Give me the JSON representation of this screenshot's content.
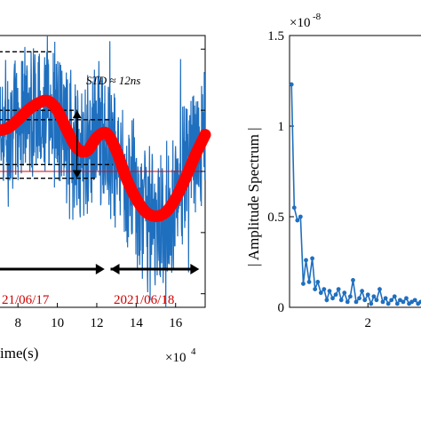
{
  "chart_data": [
    {
      "type": "line",
      "xlabel": "ime(s)",
      "x_exponent_label": "×10",
      "x_exponent_power": "4",
      "x_ticks": [
        "8",
        "10",
        "12",
        "14",
        "16"
      ],
      "x_tick_values": [
        8,
        10,
        12,
        14,
        16
      ],
      "xlim": [
        7.0,
        17.5
      ],
      "ylim": [
        -1.0,
        1.0
      ],
      "annotation_std": "STD ≈ 12ns",
      "date_labels": [
        "21/06/17",
        "2021/06/18"
      ],
      "colors": {
        "signal": "#1f6fbf",
        "trend": "#ff0000",
        "mean": "#e00000",
        "date": "#d00000",
        "arrow": "#000000"
      },
      "trend_series": {
        "name": "",
        "x": [
          7.0,
          7.5,
          8.0,
          8.5,
          9.0,
          9.5,
          10.0,
          10.5,
          11.0,
          11.5,
          12.0,
          12.5,
          13.0,
          13.5,
          14.0,
          14.5,
          15.0,
          15.5,
          16.0,
          16.5,
          17.0,
          17.5
        ],
        "y": [
          0.3,
          0.32,
          0.38,
          0.45,
          0.5,
          0.52,
          0.45,
          0.3,
          0.17,
          0.15,
          0.25,
          0.28,
          0.15,
          -0.05,
          -0.2,
          -0.3,
          -0.33,
          -0.3,
          -0.2,
          -0.05,
          0.12,
          0.27
        ]
      },
      "mean_line_y": 0.0,
      "dashed_levels_y": [
        0.88,
        0.45,
        0.38,
        0.05,
        -0.05
      ],
      "vertical_arrow": {
        "x": 11.0,
        "y_from": 0.45,
        "y_to": -0.05
      },
      "period_arrows": [
        {
          "x_from": 7.0,
          "x_to": 12.4
        },
        {
          "x_from": 12.7,
          "x_to": 17.2
        }
      ]
    },
    {
      "type": "line",
      "ylabel": "| Amplitude Spectrum |",
      "y_exponent_label": "×10",
      "y_exponent_power": "-8",
      "y_ticks": [
        "0",
        "0.5",
        "1",
        "1.5"
      ],
      "y_tick_values": [
        0,
        0.5,
        1.0,
        1.5
      ],
      "x_ticks": [
        "2"
      ],
      "x_tick_values": [
        2
      ],
      "xlim": [
        0,
        3.4
      ],
      "ylim": [
        0,
        1.5
      ],
      "series": [
        {
          "name": "",
          "x": [
            0.05,
            0.12,
            0.2,
            0.28,
            0.35,
            0.42,
            0.5,
            0.58,
            0.65,
            0.72,
            0.8,
            0.88,
            0.95,
            1.02,
            1.1,
            1.18,
            1.25,
            1.32,
            1.4,
            1.48,
            1.55,
            1.62,
            1.7,
            1.78,
            1.85,
            1.92,
            2.0,
            2.08,
            2.15,
            2.22,
            2.3,
            2.38,
            2.45,
            2.52,
            2.6,
            2.68,
            2.75,
            2.82,
            2.9,
            2.98,
            3.05,
            3.12,
            3.2,
            3.28,
            3.35
          ],
          "y": [
            1.23,
            0.55,
            0.48,
            0.5,
            0.13,
            0.26,
            0.14,
            0.27,
            0.1,
            0.14,
            0.08,
            0.1,
            0.04,
            0.09,
            0.05,
            0.07,
            0.1,
            0.04,
            0.08,
            0.03,
            0.06,
            0.15,
            0.03,
            0.05,
            0.09,
            0.04,
            0.07,
            0.02,
            0.06,
            0.04,
            0.1,
            0.03,
            0.05,
            0.02,
            0.04,
            0.06,
            0.02,
            0.04,
            0.03,
            0.05,
            0.02,
            0.03,
            0.04,
            0.02,
            0.03
          ]
        }
      ],
      "colors": {
        "line": "#1f6fbf"
      }
    }
  ]
}
